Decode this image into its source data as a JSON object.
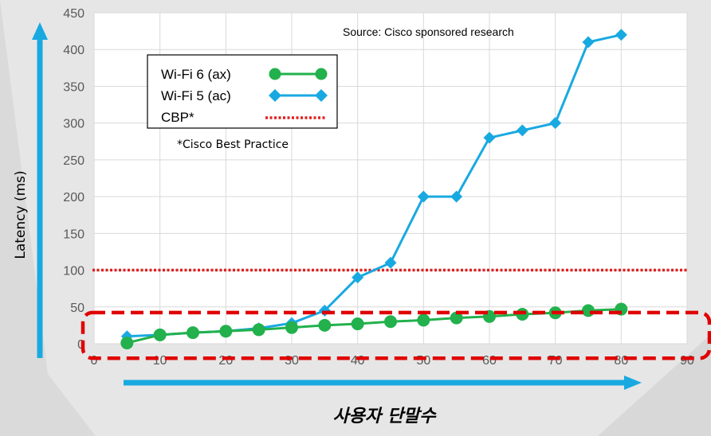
{
  "chart_data": {
    "type": "line",
    "xlim": [
      0,
      90
    ],
    "ylim": [
      0,
      450
    ],
    "x_ticks": [
      0,
      10,
      20,
      30,
      40,
      50,
      60,
      70,
      80,
      90
    ],
    "y_ticks": [
      0,
      50,
      100,
      150,
      200,
      250,
      300,
      350,
      400,
      450
    ],
    "ylabel": "Latency (ms)",
    "xlabel": "사용자 단말수",
    "grid": true,
    "source": "Source: Cisco sponsored research",
    "note": "*Cisco Best Practice",
    "series": [
      {
        "name": "Wi-Fi 6 (ax)",
        "color": "#22b14c",
        "marker": "circle",
        "x": [
          5,
          10,
          15,
          20,
          25,
          30,
          35,
          40,
          45,
          50,
          55,
          60,
          65,
          70,
          75,
          80
        ],
        "y": [
          1,
          12,
          15,
          17,
          19,
          22,
          25,
          27,
          30,
          32,
          35,
          37,
          40,
          42,
          45,
          47
        ]
      },
      {
        "name": "Wi-Fi 5 (ac)",
        "color": "#19a9e1",
        "marker": "diamond",
        "x": [
          5,
          10,
          15,
          20,
          25,
          30,
          35,
          40,
          45,
          50,
          55,
          60,
          65,
          70,
          75,
          80
        ],
        "y": [
          10,
          12,
          15,
          17,
          21,
          28,
          45,
          90,
          110,
          200,
          200,
          280,
          290,
          300,
          410,
          420
        ]
      }
    ],
    "reference_line": {
      "name": "CBP*",
      "y": 100,
      "color": "#e02020",
      "style": "dotted"
    },
    "highlight_box": {
      "y_range": [
        -10,
        65
      ],
      "color": "#e00000",
      "style": "dashed"
    }
  }
}
